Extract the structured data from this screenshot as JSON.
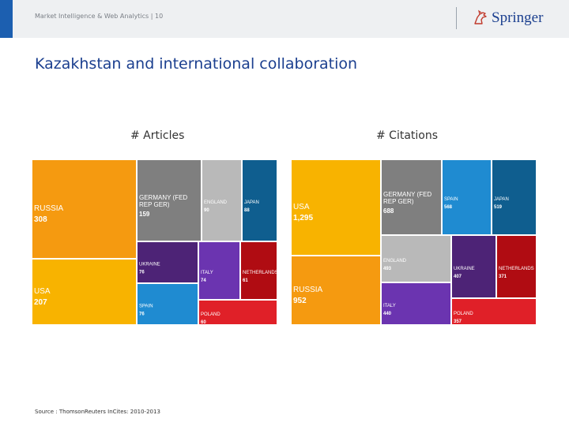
{
  "header": {
    "breadcrumb": "Market Intelligence & Web Analytics | 10",
    "logo_text": "Springer"
  },
  "page_title": "Kazakhstan and international collaboration",
  "source": "Source : ThomsonReuters InCites: 2010-2013",
  "colors": {
    "orange": "#f59a10",
    "yellow": "#f8b300",
    "gray": "#7f7f7f",
    "lightgray": "#b9b9b9",
    "lightblue": "#1f8bd1",
    "darkblue": "#0f5e8f",
    "purple": "#4d2376",
    "violet": "#6b34b0",
    "darkred": "#b00c12",
    "red": "#e02028"
  },
  "chart_data": [
    {
      "type": "treemap",
      "title": "# Articles",
      "items": [
        {
          "label": "RUSSIA",
          "value": 308,
          "display": "308",
          "color": "orange"
        },
        {
          "label": "USA",
          "value": 207,
          "display": "207",
          "color": "yellow"
        },
        {
          "label": "GERMANY (FED REP GER)",
          "value": 159,
          "display": "159",
          "color": "gray"
        },
        {
          "label": "ENGLAND",
          "value": 90,
          "display": "90",
          "color": "lightgray"
        },
        {
          "label": "JAPAN",
          "value": 88,
          "display": "88",
          "color": "darkblue"
        },
        {
          "label": "UKRAINE",
          "value": 76,
          "display": "76",
          "color": "purple"
        },
        {
          "label": "SPAIN",
          "value": 76,
          "display": "76",
          "color": "lightblue"
        },
        {
          "label": "ITALY",
          "value": 74,
          "display": "74",
          "color": "violet"
        },
        {
          "label": "NETHERLANDS",
          "value": 61,
          "display": "61",
          "color": "darkred"
        },
        {
          "label": "POLAND",
          "value": 60,
          "display": "60",
          "color": "red"
        }
      ]
    },
    {
      "type": "treemap",
      "title": "# Citations",
      "items": [
        {
          "label": "USA",
          "value": 1295,
          "display": "1,295",
          "color": "yellow"
        },
        {
          "label": "RUSSIA",
          "value": 952,
          "display": "952",
          "color": "orange"
        },
        {
          "label": "GERMANY (FED REP GER)",
          "value": 688,
          "display": "688",
          "color": "gray"
        },
        {
          "label": "SPAIN",
          "value": 568,
          "display": "568",
          "color": "lightblue"
        },
        {
          "label": "JAPAN",
          "value": 519,
          "display": "519",
          "color": "darkblue"
        },
        {
          "label": "ENGLAND",
          "value": 493,
          "display": "493",
          "color": "lightgray"
        },
        {
          "label": "UKRAINE",
          "value": 407,
          "display": "407",
          "color": "purple"
        },
        {
          "label": "NETHERLANDS",
          "value": 371,
          "display": "371",
          "color": "darkred"
        },
        {
          "label": "ITALY",
          "value": 440,
          "display": "440",
          "color": "violet"
        },
        {
          "label": "POLAND",
          "value": 357,
          "display": "357",
          "color": "red"
        }
      ]
    }
  ]
}
